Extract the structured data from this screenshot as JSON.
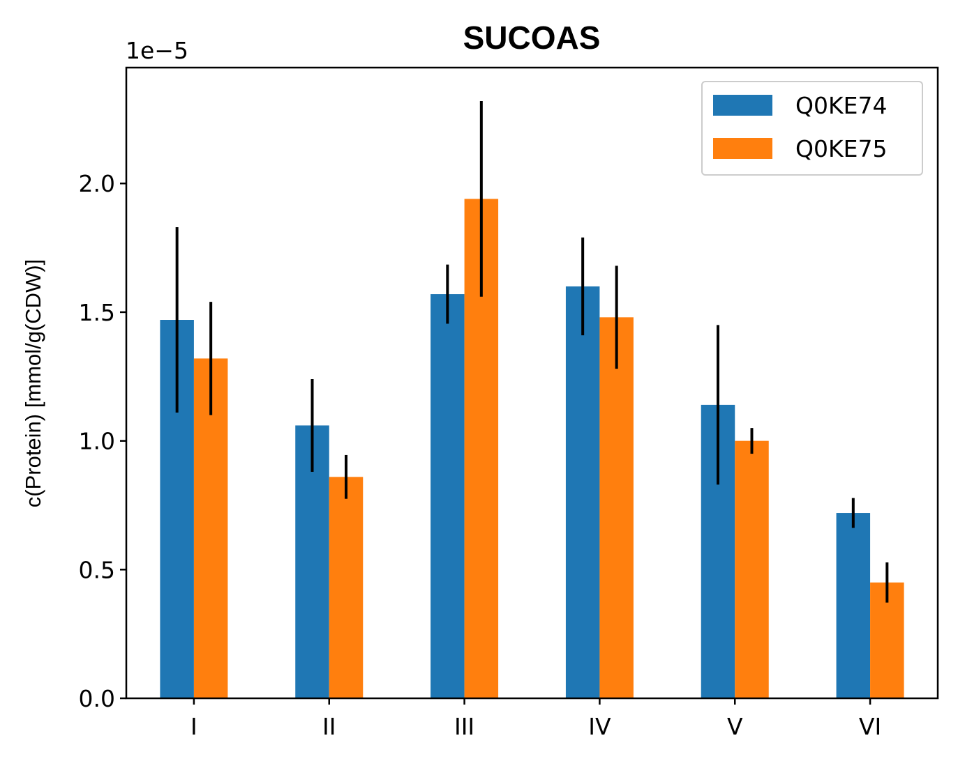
{
  "chart_data": {
    "type": "bar",
    "title": "SUCOAS",
    "ylabel": "c(Protein) [mmol/g(CDW)]",
    "xlabel": "",
    "scale_label": "1e−5",
    "categories": [
      "I",
      "II",
      "III",
      "IV",
      "V",
      "VI"
    ],
    "ylim": [
      0,
      2.45
    ],
    "yticks": [
      0.0,
      0.5,
      1.0,
      1.5,
      2.0
    ],
    "ytick_labels": [
      "0.0",
      "0.5",
      "1.0",
      "1.5",
      "2.0"
    ],
    "grid": false,
    "legend_position": "top-right",
    "series": [
      {
        "name": "Q0KE74",
        "color": "#1f77b4",
        "values": [
          1.47,
          1.06,
          1.57,
          1.6,
          1.14,
          0.72
        ],
        "errors": [
          0.36,
          0.18,
          0.115,
          0.19,
          0.31,
          0.058
        ]
      },
      {
        "name": "Q0KE75",
        "color": "#ff7f0e",
        "values": [
          1.32,
          0.86,
          1.94,
          1.48,
          1.0,
          0.45
        ],
        "errors": [
          0.22,
          0.085,
          0.38,
          0.2,
          0.05,
          0.078
        ]
      }
    ]
  }
}
